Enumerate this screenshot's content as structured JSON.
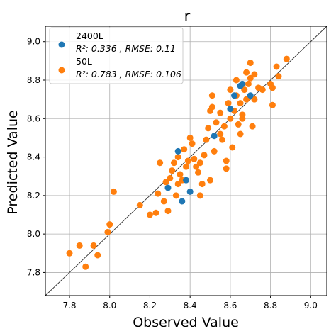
{
  "chart_data": {
    "type": "scatter",
    "title": "r",
    "xlabel": "Observed Value",
    "ylabel": "Predicted Value",
    "xlim": [
      7.68,
      9.08
    ],
    "ylim": [
      7.68,
      9.08
    ],
    "xticks": [
      7.8,
      8.0,
      8.2,
      8.4,
      8.6,
      8.8,
      9.0
    ],
    "yticks": [
      7.8,
      8.0,
      8.2,
      8.4,
      8.6,
      8.8,
      9.0
    ],
    "tick_labels": [
      "7.8",
      "8.0",
      "8.2",
      "8.4",
      "8.6",
      "8.8",
      "9.0"
    ],
    "grid": true,
    "reference_line": "y = x",
    "legend_placement": "upper left",
    "series": [
      {
        "name": "2400L",
        "stats": "R²: 0.336 , RMSE: 0.11",
        "color": "#1f77b4",
        "points": [
          [
            8.29,
            8.24
          ],
          [
            8.34,
            8.43
          ],
          [
            8.36,
            8.17
          ],
          [
            8.38,
            8.28
          ],
          [
            8.4,
            8.22
          ],
          [
            8.52,
            8.51
          ],
          [
            8.6,
            8.65
          ],
          [
            8.62,
            8.72
          ],
          [
            8.65,
            8.77
          ],
          [
            8.66,
            8.78
          ],
          [
            8.7,
            8.72
          ]
        ]
      },
      {
        "name": "50L",
        "stats": "R²: 0.783 , RMSE: 0.106",
        "color": "#ff7f0e",
        "points": [
          [
            7.8,
            7.9
          ],
          [
            7.85,
            7.94
          ],
          [
            7.88,
            7.83
          ],
          [
            7.92,
            7.94
          ],
          [
            7.94,
            7.89
          ],
          [
            7.99,
            8.01
          ],
          [
            8.0,
            8.05
          ],
          [
            8.02,
            8.22
          ],
          [
            8.15,
            8.15
          ],
          [
            8.2,
            8.1
          ],
          [
            8.23,
            8.11
          ],
          [
            8.24,
            8.21
          ],
          [
            8.25,
            8.37
          ],
          [
            8.27,
            8.17
          ],
          [
            8.28,
            8.27
          ],
          [
            8.29,
            8.12
          ],
          [
            8.3,
            8.29
          ],
          [
            8.31,
            8.33
          ],
          [
            8.32,
            8.37
          ],
          [
            8.33,
            8.2
          ],
          [
            8.34,
            8.26
          ],
          [
            8.34,
            8.4
          ],
          [
            8.35,
            8.31
          ],
          [
            8.36,
            8.28
          ],
          [
            8.37,
            8.44
          ],
          [
            8.38,
            8.35
          ],
          [
            8.39,
            8.38
          ],
          [
            8.4,
            8.5
          ],
          [
            8.41,
            8.47
          ],
          [
            8.42,
            8.39
          ],
          [
            8.43,
            8.35
          ],
          [
            8.44,
            8.32
          ],
          [
            8.45,
            8.37
          ],
          [
            8.45,
            8.2
          ],
          [
            8.46,
            8.26
          ],
          [
            8.47,
            8.41
          ],
          [
            8.48,
            8.49
          ],
          [
            8.49,
            8.55
          ],
          [
            8.5,
            8.28
          ],
          [
            8.5,
            8.64
          ],
          [
            8.51,
            8.66
          ],
          [
            8.51,
            8.72
          ],
          [
            8.52,
            8.43
          ],
          [
            8.53,
            8.58
          ],
          [
            8.55,
            8.52
          ],
          [
            8.56,
            8.49
          ],
          [
            8.57,
            8.56
          ],
          [
            8.58,
            8.38
          ],
          [
            8.58,
            8.34
          ],
          [
            8.59,
            8.68
          ],
          [
            8.6,
            8.6
          ],
          [
            8.61,
            8.45
          ],
          [
            8.62,
            8.64
          ],
          [
            8.63,
            8.72
          ],
          [
            8.63,
            8.8
          ],
          [
            8.64,
            8.57
          ],
          [
            8.65,
            8.68
          ],
          [
            8.65,
            8.52
          ],
          [
            8.66,
            8.62
          ],
          [
            8.67,
            8.75
          ],
          [
            8.68,
            8.84
          ],
          [
            8.68,
            8.7
          ],
          [
            8.69,
            8.78
          ],
          [
            8.7,
            8.89
          ],
          [
            8.7,
            8.81
          ],
          [
            8.71,
            8.56
          ],
          [
            8.72,
            8.7
          ],
          [
            8.72,
            8.83
          ],
          [
            8.74,
            8.76
          ],
          [
            8.76,
            8.75
          ],
          [
            8.8,
            8.78
          ],
          [
            8.81,
            8.76
          ],
          [
            8.81,
            8.67
          ],
          [
            8.83,
            8.87
          ],
          [
            8.84,
            8.82
          ],
          [
            8.88,
            8.91
          ],
          [
            8.66,
            8.6
          ],
          [
            8.55,
            8.63
          ],
          [
            8.6,
            8.75
          ]
        ]
      }
    ]
  }
}
